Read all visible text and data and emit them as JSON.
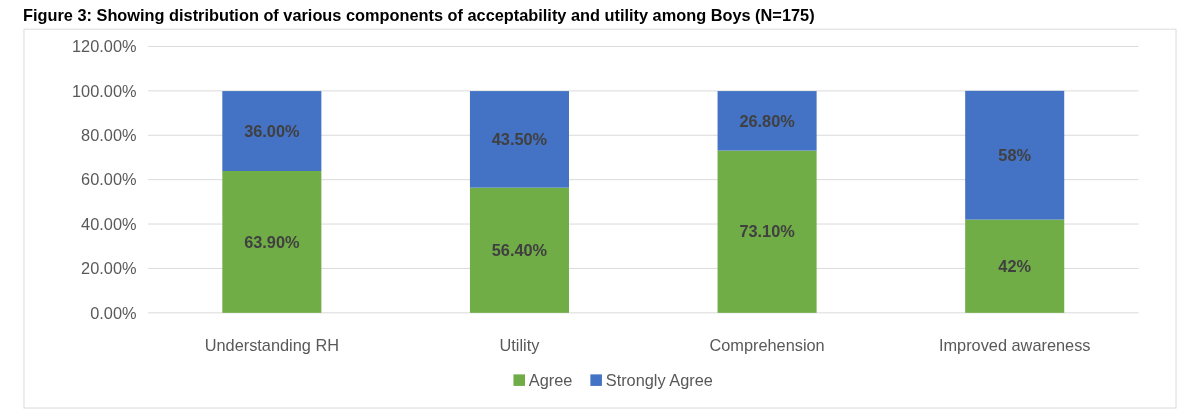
{
  "chart_data": {
    "type": "bar",
    "title": "Figure 3: Showing distribution of various components of acceptability and utility among Boys (N=175)",
    "categories": [
      "Understanding RH",
      "Utility",
      "Comprehension",
      "Improved awareness"
    ],
    "stacked": true,
    "series": [
      {
        "name": "Agree",
        "color": "#70ad47",
        "values": [
          63.9,
          56.4,
          73.1,
          42
        ],
        "value_labels": [
          "63.90%",
          "56.40%",
          "73.10%",
          "42%"
        ]
      },
      {
        "name": "Strongly Agree",
        "color": "#4472c4",
        "values": [
          36.0,
          43.5,
          26.8,
          58
        ],
        "value_labels": [
          "36.00%",
          "43.50%",
          "26.80%",
          "58%"
        ]
      }
    ],
    "ylim": [
      0,
      120
    ],
    "yticks": [
      {
        "value": 0,
        "label": "0.00%"
      },
      {
        "value": 20,
        "label": "20.00%"
      },
      {
        "value": 40,
        "label": "40.00%"
      },
      {
        "value": 60,
        "label": "60.00%"
      },
      {
        "value": 80,
        "label": "80.00%"
      },
      {
        "value": 100,
        "label": "100.00%"
      },
      {
        "value": 120,
        "label": "120.00%"
      }
    ],
    "grid": "y",
    "legend": "bottom"
  }
}
